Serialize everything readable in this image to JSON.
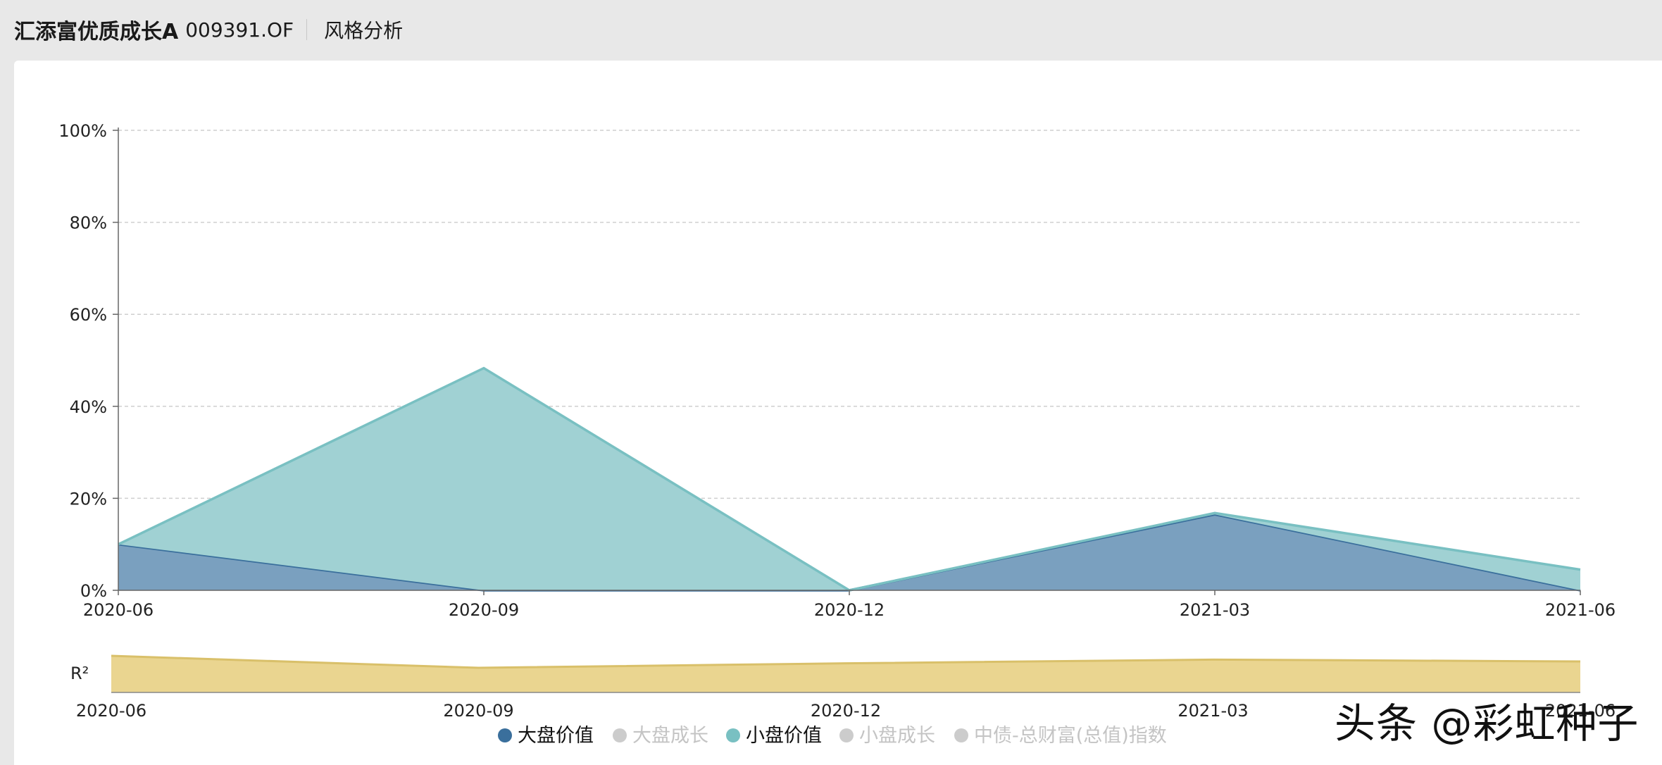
{
  "header": {
    "fund_name": "汇添富优质成长A",
    "fund_code": "009391.OF",
    "tab_label": "风格分析"
  },
  "chart_data": {
    "type": "area",
    "stacked": true,
    "x": [
      "2020-06",
      "2020-09",
      "2020-12",
      "2021-03",
      "2021-06"
    ],
    "ylim": [
      0,
      100
    ],
    "yticks": [
      "0%",
      "20%",
      "40%",
      "60%",
      "80%",
      "100%"
    ],
    "grid": true,
    "series": [
      {
        "name": "大盘价值",
        "color": "#3a6f9c",
        "fill": "#7aa0bf",
        "visible": true,
        "x": [
          "2020-06",
          "2020-09",
          "2020-12",
          "2021-03",
          "2021-06"
        ],
        "values": [
          10,
          0,
          0,
          16.5,
          0
        ]
      },
      {
        "name": "大盘成长",
        "color": "#cccccc",
        "visible": false
      },
      {
        "name": "小盘价值",
        "color": "#79c0c2",
        "fill": "#a0d1d3",
        "visible": true,
        "x": [
          "2020-06",
          "2020-09",
          "2020-12",
          "2021-03",
          "2021-06"
        ],
        "values": [
          0,
          48.3,
          0,
          0.3,
          4.5
        ]
      },
      {
        "name": "小盘成长",
        "color": "#cccccc",
        "visible": false
      },
      {
        "name": "中债-总财富(总值)指数",
        "color": "#cccccc",
        "visible": false
      }
    ],
    "r2": {
      "label": "R²",
      "x": [
        "2020-06",
        "2020-09",
        "2020-12",
        "2021-03",
        "2021-06"
      ],
      "values": [
        0.98,
        0.66,
        0.78,
        0.88,
        0.83
      ]
    },
    "legend_position": "bottom"
  },
  "watermark": "头条 @彩虹种子"
}
